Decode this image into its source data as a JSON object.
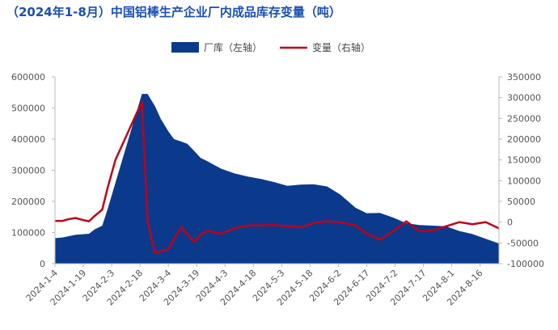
{
  "colors": {
    "area": "#0b3a8c",
    "line": "#c00018",
    "title": "#1a4fb3",
    "axis": "#bbbbbb"
  },
  "chart_data": {
    "type": "area",
    "title": "（2024年1-8月）中国铝棒生产企业厂内成品库存变量（吨）",
    "x": [
      "2024-1-4",
      "2024-1-8",
      "2024-1-11",
      "2024-1-15",
      "2024-1-18",
      "2024-1-22",
      "2024-1-25",
      "2024-1-29",
      "2024-2-1",
      "2024-2-5",
      "2024-2-19",
      "2024-2-22",
      "2024-2-26",
      "2024-2-29",
      "2024-3-4",
      "2024-3-7",
      "2024-3-11",
      "2024-3-14",
      "2024-3-18",
      "2024-3-21",
      "2024-3-25",
      "2024-3-28",
      "2024-4-1",
      "2024-4-8",
      "2024-4-15",
      "2024-4-22",
      "2024-4-29",
      "2024-5-6",
      "2024-5-13",
      "2024-5-20",
      "2024-5-27",
      "2024-6-3",
      "2024-6-11",
      "2024-6-17",
      "2024-6-24",
      "2024-7-1",
      "2024-7-8",
      "2024-7-15",
      "2024-7-22",
      "2024-7-29",
      "2024-8-5",
      "2024-8-12",
      "2024-8-19",
      "2024-8-26"
    ],
    "x_ticks": [
      "2024-1-4",
      "2024-1-19",
      "2024-2-3",
      "2024-2-18",
      "2024-3-4",
      "2024-3-19",
      "2024-4-3",
      "2024-4-18",
      "2024-5-3",
      "2024-5-18",
      "2024-6-2",
      "2024-6-17",
      "2024-7-2",
      "2024-7-17",
      "2024-8-1",
      "2024-8-16"
    ],
    "series": [
      {
        "name": "厂库（左轴）",
        "type": "area",
        "axis": "left",
        "values": [
          82000,
          84000,
          88000,
          93000,
          94000,
          96000,
          110000,
          122000,
          178000,
          260000,
          545000,
          545000,
          505000,
          465000,
          425000,
          400000,
          392000,
          385000,
          360000,
          340000,
          328000,
          318000,
          305000,
          290000,
          280000,
          272000,
          262000,
          250000,
          254000,
          255000,
          248000,
          222000,
          180000,
          162000,
          163000,
          148000,
          130000,
          124000,
          122000,
          120000,
          105000,
          95000,
          80000,
          65000
        ]
      },
      {
        "name": "变量（右轴）",
        "type": "line",
        "axis": "right",
        "values": [
          3000,
          3000,
          7000,
          10000,
          6000,
          2000,
          15000,
          30000,
          85000,
          150000,
          290000,
          2000,
          -75000,
          -70000,
          -65000,
          -40000,
          -12000,
          -30000,
          -48000,
          -30000,
          -20000,
          -25000,
          -28000,
          -15000,
          -8000,
          -8000,
          -7000,
          -10000,
          -12000,
          -2000,
          2000,
          0,
          -8000,
          -28000,
          -42000,
          -22000,
          2000,
          -22000,
          -20000,
          -10000,
          0,
          -5000,
          0,
          -15000
        ]
      }
    ],
    "y_left": {
      "ylim": [
        0,
        600000
      ],
      "ticks": [
        "0",
        "100000",
        "200000",
        "300000",
        "400000",
        "500000",
        "600000"
      ]
    },
    "y_right": {
      "ylim": [
        -100000,
        350000
      ],
      "ticks": [
        "-100000",
        "-50000",
        "0",
        "50000",
        "100000",
        "150000",
        "200000",
        "250000",
        "300000",
        "350000"
      ]
    },
    "legend": {
      "position": "top-center"
    }
  }
}
